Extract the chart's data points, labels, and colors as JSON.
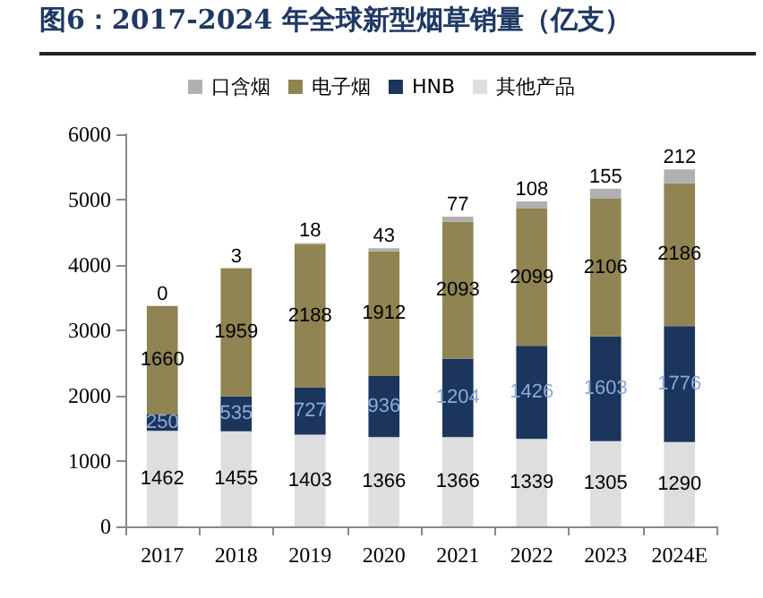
{
  "chart_data": {
    "type": "bar",
    "title": "图6：2017-2024 年全球新型烟草销量（亿支）",
    "categories": [
      "2017",
      "2018",
      "2019",
      "2020",
      "2021",
      "2022",
      "2023",
      "2024E"
    ],
    "stacked": true,
    "data_labels": true,
    "legend": "top",
    "grid": false,
    "ylim": [
      0,
      6000
    ],
    "yticks": [
      0,
      1000,
      2000,
      3000,
      4000,
      5000,
      6000
    ],
    "series": [
      {
        "name": "其他产品",
        "color": "#dedede",
        "values": [
          1462,
          1455,
          1403,
          1366,
          1366,
          1339,
          1305,
          1290
        ]
      },
      {
        "name": "HNB",
        "color": "#1b355c",
        "values": [
          250,
          535,
          727,
          936,
          1204,
          1426,
          1603,
          1776
        ]
      },
      {
        "name": "电子烟",
        "color": "#8f8452",
        "values": [
          1660,
          1959,
          2188,
          1912,
          2093,
          2099,
          2106,
          2186
        ]
      },
      {
        "name": "口含烟",
        "color": "#b0b0b0",
        "values": [
          0,
          3,
          18,
          43,
          77,
          108,
          155,
          212
        ]
      }
    ]
  }
}
